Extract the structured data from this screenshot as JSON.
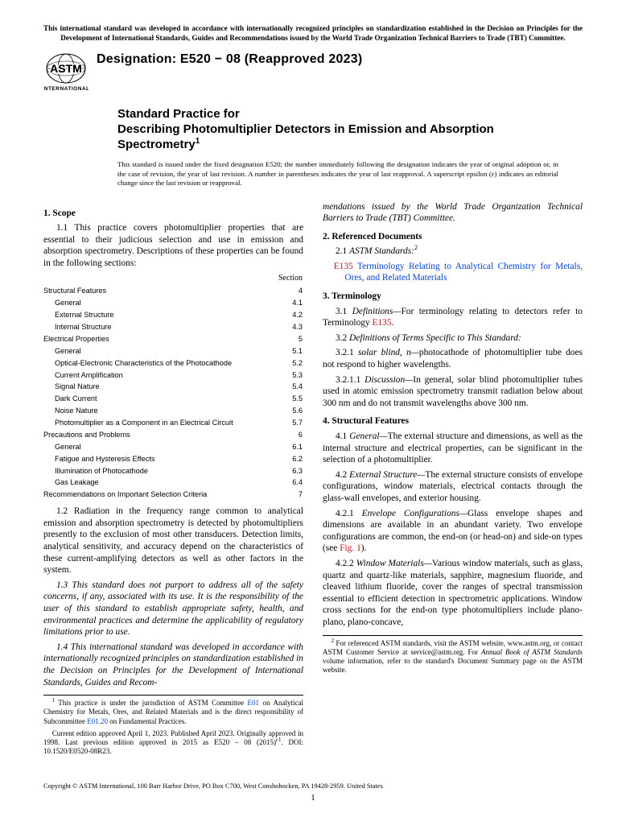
{
  "colors": {
    "link_blue": "#0645cc",
    "link_red": "#c01818",
    "text": "#000000",
    "background": "#ffffff"
  },
  "topnote": "This international standard was developed in accordance with internationally recognized principles on standardization established in the Decision on Principles for the Development of International Standards, Guides and Recommendations issued by the World Trade Organization Technical Barriers to Trade (TBT) Committee.",
  "logo_caption": "INTERNATIONAL",
  "designation": "Designation: E520 − 08 (Reapproved 2023)",
  "title_pre": "Standard Practice for",
  "title_main": "Describing Photomultiplier Detectors in Emission and Absorption Spectrometry",
  "title_sup": "1",
  "issued_note": "This standard is issued under the fixed designation E520; the number immediately following the designation indicates the year of original adoption or, in the case of revision, the year of last revision. A number in parentheses indicates the year of last reapproval. A superscript epsilon (ε) indicates an editorial change since the last revision or reapproval.",
  "left": {
    "scope_head": "1. Scope",
    "p1_1": "1.1 This practice covers photomultiplier properties that are essential to their judicious selection and use in emission and absorption spectrometry. Descriptions of these properties can be found in the following sections:",
    "toc_header": "Section",
    "toc": [
      {
        "label": "Structural Features",
        "sec": "4",
        "lvl": 0
      },
      {
        "label": "General",
        "sec": "4.1",
        "lvl": 1
      },
      {
        "label": "External Structure",
        "sec": "4.2",
        "lvl": 1
      },
      {
        "label": "Internal Structure",
        "sec": "4.3",
        "lvl": 1
      },
      {
        "label": "Electrical Properties",
        "sec": "5",
        "lvl": 0
      },
      {
        "label": "General",
        "sec": "5.1",
        "lvl": 1
      },
      {
        "label": "Optical-Electronic Characteristics of the Photocathode",
        "sec": "5.2",
        "lvl": 1
      },
      {
        "label": "Current Amplification",
        "sec": "5.3",
        "lvl": 1
      },
      {
        "label": "Signal Nature",
        "sec": "5.4",
        "lvl": 1
      },
      {
        "label": "Dark Current",
        "sec": "5.5",
        "lvl": 1
      },
      {
        "label": "Noise Nature",
        "sec": "5.6",
        "lvl": 1
      },
      {
        "label": "Photomultiplier as a Component in an Electrical Circuit",
        "sec": "5.7",
        "lvl": 1
      },
      {
        "label": "Precautions and Problems",
        "sec": "6",
        "lvl": 0
      },
      {
        "label": "General",
        "sec": "6.1",
        "lvl": 1
      },
      {
        "label": "Fatigue and Hysteresis Effects",
        "sec": "6.2",
        "lvl": 1
      },
      {
        "label": "Illumination of Photocathode",
        "sec": "6.3",
        "lvl": 1
      },
      {
        "label": "Gas Leakage",
        "sec": "6.4",
        "lvl": 1
      },
      {
        "label": "Recommendations on Important Selection Criteria",
        "sec": "7",
        "lvl": 0
      }
    ],
    "p1_2": "1.2 Radiation in the frequency range common to analytical emission and absorption spectrometry is detected by photomultipliers presently to the exclusion of most other transducers. Detection limits, analytical sensitivity, and accuracy depend on the characteristics of these current-amplifying detectors as well as other factors in the system.",
    "p1_3": "1.3 This standard does not purport to address all of the safety concerns, if any, associated with its use. It is the responsibility of the user of this standard to establish appropriate safety, health, and environmental practices and determine the applicability of regulatory limitations prior to use.",
    "p1_4": "1.4 This international standard was developed in accordance with internationally recognized principles on standardization established in the Decision on Principles for the Development of International Standards, Guides and Recom-",
    "fn1_a": "This practice is under the jurisdiction of ASTM Committee ",
    "fn1_link1": "E01",
    "fn1_b": " on Analytical Chemistry for Metals, Ores, and Related Materials and is the direct responsibility of Subcommittee ",
    "fn1_link2": "E01.20",
    "fn1_c": " on Fundamental Practices.",
    "fn1_d": "Current edition approved April 1, 2023. Published April 2023. Originally approved in 1998. Last previous edition approved in 2015 as E520 – 08 (2015)",
    "fn1_eps": "ε1",
    "fn1_e": ". DOI: 10.1520/E0520-08R23."
  },
  "right": {
    "cont": "mendations issued by the World Trade Organization Technical Barriers to Trade (TBT) Committee.",
    "ref_head": "2. Referenced Documents",
    "p2_1_a": "2.1 ",
    "p2_1_b": "ASTM Standards:",
    "p2_1_sup": "2",
    "ref_link_code": "E135",
    "ref_link_text": " Terminology Relating to Analytical Chemistry for Metals, Ores, and Related Materials",
    "term_head": "3. Terminology",
    "p3_1_a": "3.1 ",
    "p3_1_b": "Definitions—",
    "p3_1_c": "For terminology relating to detectors refer to Terminology ",
    "p3_1_link": "E135",
    "p3_1_d": ".",
    "p3_2_a": "3.2 ",
    "p3_2_b": "Definitions of Terms Specific to This Standard:",
    "p3_2_1_a": "3.2.1 ",
    "p3_2_1_b": "solar blind, n—",
    "p3_2_1_c": "photocathode of photomultiplier tube does not respond to higher wavelengths.",
    "p3_2_1_1_a": "3.2.1.1 ",
    "p3_2_1_1_b": "Discussion—",
    "p3_2_1_1_c": "In general, solar blind photomultiplier tubes used in atomic emission spectrometry transmit radiation below about 300 nm and do not transmit wavelengths above 300 nm.",
    "struct_head": "4. Structural Features",
    "p4_1_a": "4.1 ",
    "p4_1_b": "General—",
    "p4_1_c": "The external structure and dimensions, as well as the internal structure and electrical properties, can be significant in the selection of a photomultiplier.",
    "p4_2_a": "4.2 ",
    "p4_2_b": "External Structure—",
    "p4_2_c": "The external structure consists of envelope configurations, window materials, electrical contacts through the glass-wall envelopes, and exterior housing.",
    "p4_2_1_a": "4.2.1 ",
    "p4_2_1_b": "Envelope Configurations—",
    "p4_2_1_c": "Glass envelope shapes and dimensions are available in an abundant variety. Two envelope configurations are common, the end-on (or head-on) and side-on types (see ",
    "p4_2_1_link": "Fig. 1",
    "p4_2_1_d": ").",
    "p4_2_2_a": "4.2.2 ",
    "p4_2_2_b": "Window Materials—",
    "p4_2_2_c": "Various window materials, such as glass, quartz and quartz-like materials, sapphire, magnesium fluoride, and cleaved lithium fluoride, cover the ranges of spectral transmission essential to efficient detection in spectrometric applications. Window cross sections for the end-on type photomultipliers include plano-plano, plano-concave,",
    "fn2_a": "For referenced ASTM standards, visit the ASTM website, www.astm.org, or contact ASTM Customer Service at service@astm.org. For ",
    "fn2_b": "Annual Book of ASTM Standards",
    "fn2_c": " volume information, refer to the standard's Document Summary page on the ASTM website."
  },
  "copyright": "Copyright © ASTM International, 100 Barr Harbor Drive, PO Box C700, West Conshohocken, PA 19428-2959. United States",
  "pagenum": "1"
}
